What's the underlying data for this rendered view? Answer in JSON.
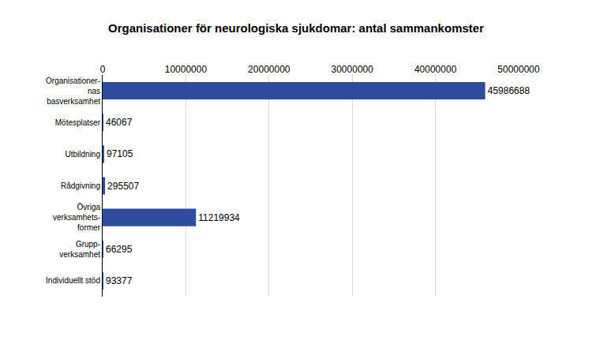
{
  "chart_data": {
    "type": "bar",
    "orientation": "horizontal",
    "title": "Organisationer för neurologiska sjukdomar: antal sammankomster",
    "categories": [
      "Organisationer-\nnas\nbasverksamhet",
      "Mötesplatser",
      "Utbildning",
      "Rådgivning",
      "Övriga\nverksamhets-\nformer",
      "Grupp-\nverksamhet",
      "Individuellt stöd"
    ],
    "values": [
      45986688,
      46067,
      97105,
      295507,
      11219934,
      66295,
      93377
    ],
    "color": "#2f4b9c",
    "xlim": [
      0,
      50000000
    ],
    "xticks": [
      0,
      10000000,
      20000000,
      30000000,
      40000000,
      50000000
    ],
    "grid": true,
    "data_labels": true
  }
}
